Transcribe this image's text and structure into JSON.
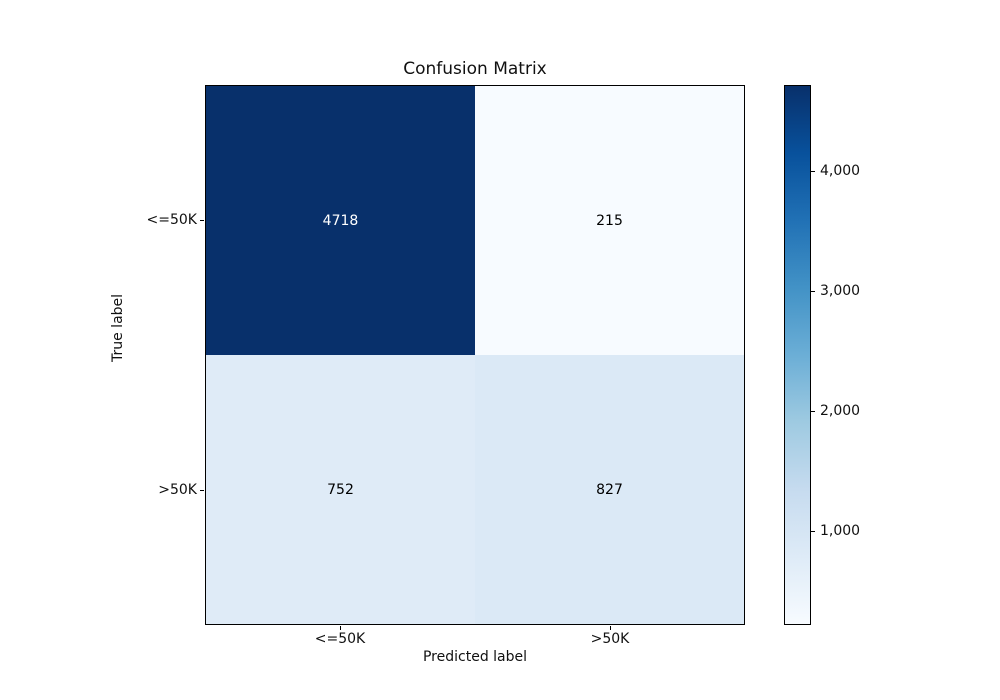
{
  "figure": {
    "background": "#ffffff"
  },
  "chart_data": {
    "type": "heatmap",
    "title": "Confusion Matrix",
    "xlabel": "Predicted label",
    "ylabel": "True label",
    "x_tick_labels": [
      "<=50K",
      ">50K"
    ],
    "y_tick_labels": [
      "<=50K",
      ">50K"
    ],
    "matrix": [
      [
        4718,
        215
      ],
      [
        752,
        827
      ]
    ],
    "cells": [
      {
        "true_label": "<=50K",
        "predicted_label": "<=50K",
        "value": "4718",
        "bg": "#08306b",
        "fg": "#ffffff"
      },
      {
        "true_label": "<=50K",
        "predicted_label": ">50K",
        "value": "215",
        "bg": "#f7fbff",
        "fg": "#000000"
      },
      {
        "true_label": ">50K",
        "predicted_label": "<=50K",
        "value": "752",
        "bg": "#dfebf7",
        "fg": "#000000"
      },
      {
        "true_label": ">50K",
        "predicted_label": ">50K",
        "value": "827",
        "bg": "#dbe9f6",
        "fg": "#000000"
      }
    ],
    "colormap": "Blues",
    "colorbar": {
      "vmin": 215,
      "vmax": 4718,
      "tick_labels": [
        "4,000",
        "3,000",
        "2,000",
        "1,000"
      ],
      "tick_values": [
        4000,
        3000,
        2000,
        1000
      ],
      "gradient_stops": [
        "#08306b",
        "#08519c",
        "#2171b5",
        "#4292c6",
        "#6baed6",
        "#9ecae1",
        "#c6dbef",
        "#deebf7",
        "#f7fbff"
      ]
    },
    "grid": false,
    "legend": false
  }
}
